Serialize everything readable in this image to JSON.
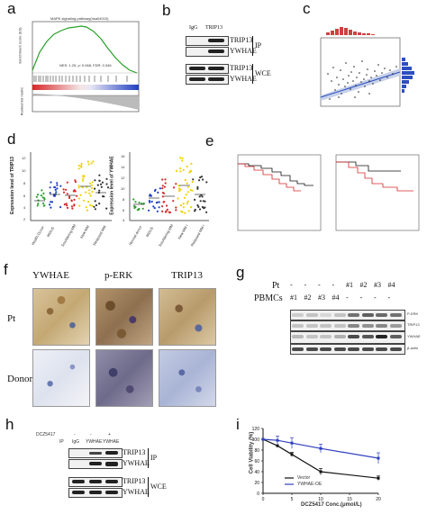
{
  "panels": {
    "a": "a",
    "b": "b",
    "c": "c",
    "d": "d",
    "e": "e",
    "f": "f",
    "g": "g",
    "h": "h",
    "i": "i"
  },
  "a": {
    "title": "MAPK signaling pathway(hsa04010)",
    "stats": "NES: 1.25, p: 0.068, FDR: 0.346",
    "ylabel_top": "Enrichment score (ES)",
    "ylabel_bottom": "Ranked list metric"
  },
  "b": {
    "col_igg": "IgG",
    "col_trip13": "TRIP13",
    "rows": [
      "TRIP13",
      "YWHAE",
      "TRIP13",
      "YWHAE"
    ],
    "ip": "IP",
    "wce": "WCE"
  },
  "d": {
    "left": {
      "ylabel": "Expression level of TRIP13",
      "groups": [
        "Health Donor",
        "MGUS",
        "Smoldering MM",
        "New MM",
        "Relapsed MM"
      ],
      "ticks": [
        "12",
        "10",
        "8",
        "6",
        "4",
        "2"
      ]
    },
    "right": {
      "ylabel": "Expression level of YWHAE",
      "groups": [
        "Normal donor",
        "MGUS",
        "Smoldering MM",
        "New MM I",
        "Relapsed MM I"
      ],
      "ticks": [
        "16",
        "14",
        "12",
        "10",
        "8",
        "6",
        "4"
      ]
    }
  },
  "f": {
    "cols": [
      "YWHAE",
      "p-ERK",
      "TRIP13"
    ],
    "rows": [
      "Pt",
      "Donor"
    ]
  },
  "g": {
    "pt_label": "Pt",
    "pbmc_label": "PBMCs",
    "pt_marks": [
      "-",
      "-",
      "-",
      "-",
      "#1",
      "#2",
      "#3",
      "#4"
    ],
    "pbmc_marks": [
      "#1",
      "#2",
      "#3",
      "#4",
      "-",
      "-",
      "-",
      "-"
    ],
    "rows": [
      "P-ERK",
      "TRIP13",
      "YWHAE",
      "β-actin"
    ]
  },
  "h": {
    "drug_label": "DCZ5417",
    "drug_marks": [
      "-",
      "-",
      "+"
    ],
    "ip_label": "IP",
    "lanes": [
      "IgG",
      "YWHAE",
      "YWHAE"
    ],
    "rows": [
      "TRIP13",
      "YWHAE",
      "TRIP13",
      "YWHAE"
    ],
    "ip": "IP",
    "wce": "WCE"
  },
  "chart_data": {
    "type": "line",
    "ylabel": "Cell Viability (%)",
    "xlabel": "DCZ5417 Conc.(μmol/L)",
    "x": [
      0,
      2.5,
      5,
      10,
      20
    ],
    "ylim": [
      0,
      120
    ],
    "xlim": [
      0,
      20
    ],
    "yticks": [
      0,
      20,
      40,
      60,
      80,
      100,
      120
    ],
    "xticks": [
      0,
      5,
      10,
      15,
      20
    ],
    "series": [
      {
        "name": "Vector",
        "values": [
          100,
          88,
          72,
          40,
          28
        ],
        "color": "#111111"
      },
      {
        "name": "YWHAE-OE",
        "values": [
          100,
          98,
          93,
          83,
          65
        ],
        "color": "#2f3fbf"
      }
    ]
  }
}
